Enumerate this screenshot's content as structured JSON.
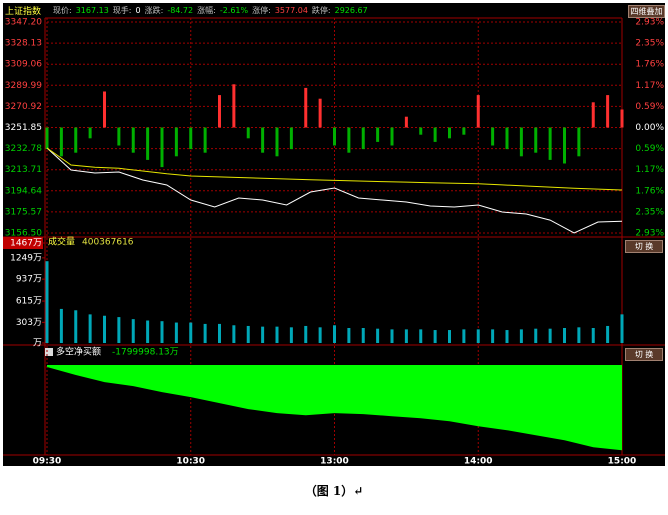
{
  "quote": {
    "name": "上证指数",
    "items": [
      {
        "label": "现价:",
        "value": "3167.13",
        "color": "#00e000"
      },
      {
        "label": "现手:",
        "value": "0",
        "color": "#ffffff"
      },
      {
        "label": "涨跌:",
        "value": "-84.72",
        "color": "#00e000"
      },
      {
        "label": "涨幅:",
        "value": "-2.61%",
        "color": "#00e000"
      },
      {
        "label": "涨停:",
        "value": "3577.04",
        "color": "#ff4040"
      },
      {
        "label": "跌停:",
        "value": "2926.67",
        "color": "#00e000"
      }
    ]
  },
  "buttons": [
    "四维叠加",
    "切 换",
    "切 换"
  ],
  "caption": "（图 1）↵",
  "chart_data": [
    {
      "type": "line",
      "x": [
        0,
        10,
        20,
        30,
        40,
        50,
        60,
        70,
        80,
        90,
        100,
        110,
        120,
        130,
        140,
        150,
        160,
        170,
        180,
        190,
        200,
        210,
        220,
        230,
        240
      ],
      "xlim": [
        0,
        240
      ],
      "xticks": [
        {
          "value": 0,
          "label": "09:30"
        },
        {
          "value": 60,
          "label": "10:30"
        },
        {
          "value": 120,
          "label": "13:00"
        },
        {
          "value": 180,
          "label": "14:00"
        },
        {
          "value": 240,
          "label": "15:00"
        }
      ],
      "ylim": [
        3156.5,
        3347.2
      ],
      "yticks": [
        {
          "value": 3347.2,
          "label": "3347.20"
        },
        3328.13,
        3309.06,
        3289.99,
        3270.92,
        3251.85,
        3232.78,
        3213.71,
        3194.64,
        3175.57,
        {
          "value": 3156.5,
          "label": "3156.50"
        }
      ],
      "y2lim": [
        -2.93,
        2.93
      ],
      "y2ticks": [
        {
          "value": 2.93,
          "label": "2.93%"
        },
        {
          "value": 2.35,
          "label": "2.35%"
        },
        {
          "value": 1.76,
          "label": "1.76%"
        },
        {
          "value": 1.17,
          "label": "1.17%"
        },
        {
          "value": 0.59,
          "label": "0.59%"
        },
        {
          "value": 0,
          "label": "0.00%"
        },
        {
          "value": -0.59,
          "label": "0.59%"
        },
        {
          "value": -1.17,
          "label": "1.17%"
        },
        {
          "value": -1.76,
          "label": "1.76%"
        },
        {
          "value": -2.35,
          "label": "2.35%"
        },
        {
          "value": -2.93,
          "label": "2.93%"
        }
      ],
      "grid": true,
      "series": [
        {
          "color": "#ffffff",
          "values": [
            3233.3,
            3213.4,
            3210.7,
            3211.6,
            3204.4,
            3199.9,
            3186.3,
            3180.0,
            3188.1,
            3186.3,
            3181.8,
            3193.6,
            3197.2,
            3188.1,
            3186.3,
            3184.5,
            3180.9,
            3180.0,
            3181.8,
            3175.5,
            3173.7,
            3168.2,
            3156.5,
            3166.4,
            3167.1
          ]
        },
        {
          "color": "#e6e600",
          "values": [
            3233.3,
            3218,
            3216,
            3215,
            3212.5,
            3210,
            3208,
            3207.3,
            3206.7,
            3206,
            3205.3,
            3204.7,
            3204,
            3203.5,
            3203,
            3202.5,
            3202,
            3201.5,
            3201,
            3200,
            3199,
            3198,
            3197,
            3196.2,
            3195.4
          ]
        }
      ]
    },
    {
      "type": "bar",
      "axis": "y2",
      "x": [
        0,
        6,
        12,
        18,
        24,
        30,
        36,
        42,
        48,
        54,
        60,
        66,
        72,
        78,
        84,
        90,
        96,
        102,
        108,
        114,
        120,
        126,
        132,
        138,
        144,
        150,
        156,
        162,
        168,
        174,
        180,
        186,
        192,
        198,
        204,
        210,
        216,
        222,
        228,
        234,
        240
      ],
      "values": [
        -0.6,
        -0.8,
        -0.7,
        -0.3,
        1.0,
        -0.5,
        -0.7,
        -0.9,
        -1.1,
        -0.8,
        -0.6,
        -0.7,
        0.9,
        1.2,
        -0.3,
        -0.7,
        -0.8,
        -0.6,
        1.1,
        0.8,
        -0.5,
        -0.7,
        -0.6,
        -0.4,
        -0.5,
        0.3,
        -0.2,
        -0.4,
        -0.3,
        -0.2,
        0.9,
        -0.5,
        -0.6,
        -0.8,
        -0.7,
        -0.9,
        -1.0,
        -0.8,
        0.7,
        0.9,
        0.5
      ],
      "colors": {
        "up": "#ff3030",
        "down": "#00b000"
      }
    },
    {
      "type": "bar",
      "title": "成交量",
      "subtitle": "400367616",
      "x": [
        0,
        6,
        12,
        18,
        24,
        30,
        36,
        42,
        48,
        54,
        60,
        66,
        72,
        78,
        84,
        90,
        96,
        102,
        108,
        114,
        120,
        126,
        132,
        138,
        144,
        150,
        156,
        162,
        168,
        174,
        180,
        186,
        192,
        198,
        204,
        210,
        216,
        222,
        228,
        234,
        240
      ],
      "values": [
        1200,
        500,
        480,
        420,
        400,
        380,
        350,
        330,
        320,
        300,
        300,
        280,
        280,
        260,
        250,
        240,
        240,
        230,
        250,
        230,
        260,
        220,
        220,
        210,
        200,
        200,
        200,
        190,
        190,
        200,
        200,
        200,
        190,
        200,
        210,
        210,
        220,
        230,
        220,
        250,
        420
      ],
      "color": "#00a8b8",
      "ylim": [
        0,
        1467
      ],
      "yticks": [
        {
          "value": 1467,
          "label": "1467万"
        },
        {
          "value": 1249,
          "label": "1249万"
        },
        {
          "value": 937,
          "label": "937万"
        },
        {
          "value": 615,
          "label": "615万"
        },
        {
          "value": 303,
          "label": "303万"
        },
        {
          "value": 0,
          "label": "万"
        }
      ]
    },
    {
      "type": "area",
      "title": "多空净买额",
      "readout": "-1799998.13万",
      "x": [
        0,
        12,
        24,
        36,
        48,
        60,
        72,
        84,
        96,
        108,
        120,
        132,
        144,
        156,
        168,
        180,
        192,
        204,
        216,
        228,
        240
      ],
      "values": [
        -42000,
        -211800,
        -360000,
        -444700,
        -571800,
        -677600,
        -804700,
        -931800,
        -1016500,
        -1058800,
        -1016500,
        -1037600,
        -1080000,
        -1122400,
        -1185900,
        -1291800,
        -1376500,
        -1482400,
        -1588200,
        -1736500,
        -1799998.13
      ],
      "color": "#00ff00",
      "ylim": [
        -1900000,
        0
      ]
    }
  ]
}
